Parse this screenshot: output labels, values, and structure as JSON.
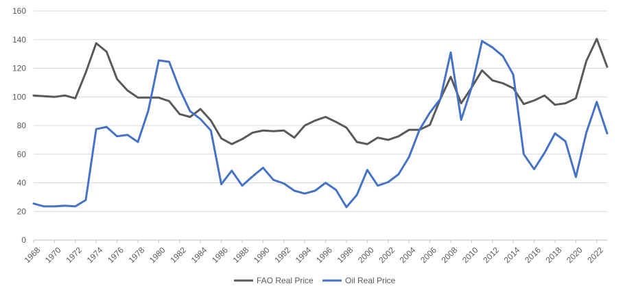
{
  "chart_data": {
    "type": "line",
    "title": "",
    "xlabel": "",
    "ylabel": "",
    "ylim": [
      0,
      160
    ],
    "yticks": [
      0,
      20,
      40,
      60,
      80,
      100,
      120,
      140,
      160
    ],
    "xlim": [
      1968,
      2023
    ],
    "xticks": [
      1968,
      1970,
      1972,
      1974,
      1976,
      1978,
      1980,
      1982,
      1984,
      1986,
      1988,
      1990,
      1992,
      1994,
      1996,
      1998,
      2000,
      2002,
      2004,
      2006,
      2008,
      2010,
      2012,
      2014,
      2016,
      2018,
      2020,
      2022
    ],
    "grid": "horizontal",
    "legend_position": "bottom",
    "x": [
      1968,
      1969,
      1970,
      1971,
      1972,
      1973,
      1974,
      1975,
      1976,
      1977,
      1978,
      1979,
      1980,
      1981,
      1982,
      1983,
      1984,
      1985,
      1986,
      1987,
      1988,
      1989,
      1990,
      1991,
      1992,
      1993,
      1994,
      1995,
      1996,
      1997,
      1998,
      1999,
      2000,
      2001,
      2002,
      2003,
      2004,
      2005,
      2006,
      2007,
      2008,
      2009,
      2010,
      2011,
      2012,
      2013,
      2014,
      2015,
      2016,
      2017,
      2018,
      2019,
      2020,
      2021,
      2022,
      2023
    ],
    "series": [
      {
        "name": "FAO Real Price",
        "color": "#595959",
        "values": [
          101,
          100.5,
          100,
          101,
          99,
          117,
          137.5,
          131.5,
          112.5,
          104.5,
          99.5,
          99.5,
          99.5,
          97,
          88,
          86,
          91.5,
          83.5,
          71,
          67,
          70.5,
          75,
          76.5,
          76,
          76.5,
          71.5,
          80,
          83.5,
          86,
          82.5,
          78.5,
          68.5,
          67,
          71.5,
          70,
          72.5,
          77,
          77,
          80.5,
          98.5,
          114,
          95.5,
          106.5,
          118.5,
          111.5,
          109.5,
          106,
          95,
          97.5,
          101,
          94.5,
          95.5,
          99,
          125,
          140.5,
          121
        ]
      },
      {
        "name": "Oil Real Price",
        "color": "#4472C4",
        "values": [
          25.5,
          23.5,
          23.5,
          24,
          23.5,
          28,
          77.5,
          79,
          72.5,
          73.5,
          68.5,
          90.5,
          125.5,
          124.5,
          105.5,
          90,
          84.5,
          76.5,
          39,
          48.5,
          38,
          44.5,
          50.5,
          42,
          39.5,
          34.5,
          32.5,
          34.5,
          40,
          35,
          23,
          31.5,
          49,
          38,
          40.5,
          46,
          58,
          77,
          89,
          98.5,
          131,
          84,
          106.5,
          139,
          134.5,
          128.5,
          115.5,
          60,
          49.5,
          61,
          74.5,
          69,
          44,
          75,
          96.5,
          74.5
        ]
      }
    ]
  }
}
